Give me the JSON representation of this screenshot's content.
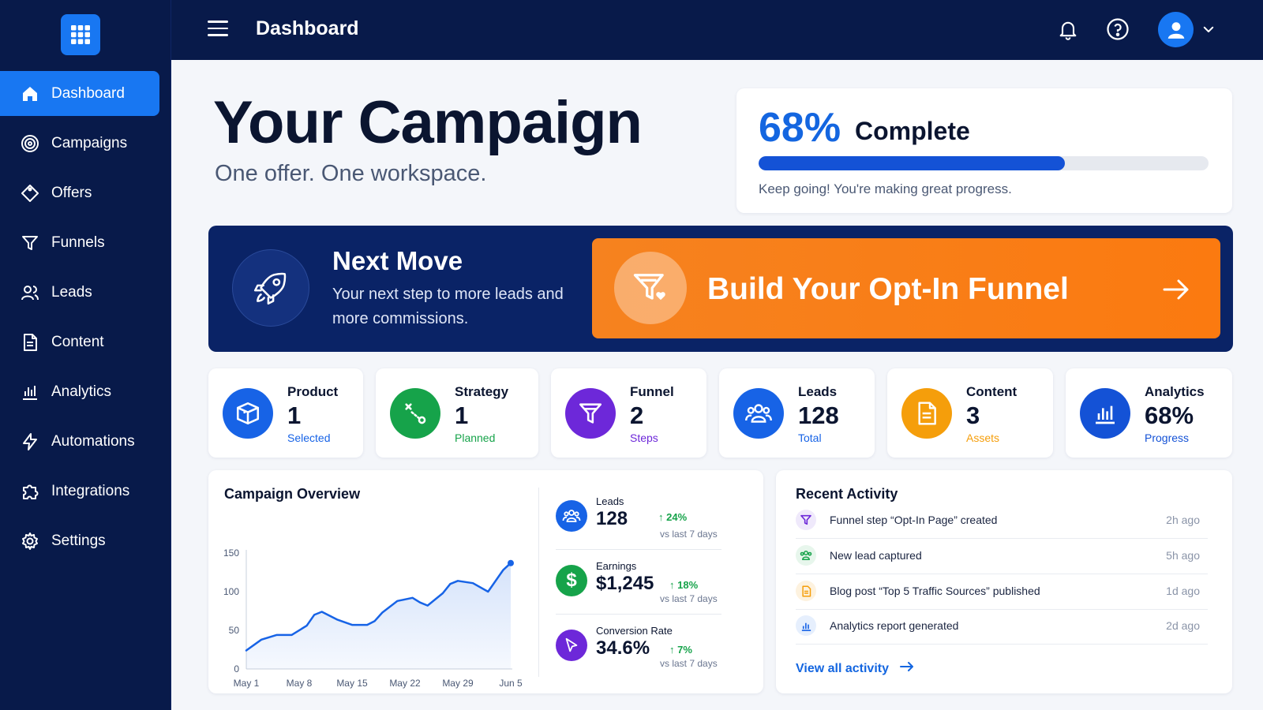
{
  "header": {
    "title": "Dashboard",
    "icons": [
      "menu-icon",
      "bell-icon",
      "help-icon",
      "user-icon",
      "chevron-down-icon"
    ]
  },
  "sidebar": {
    "items": [
      {
        "label": "Dashboard",
        "icon": "home-icon",
        "active": true
      },
      {
        "label": "Campaigns",
        "icon": "target-icon"
      },
      {
        "label": "Offers",
        "icon": "tag-icon"
      },
      {
        "label": "Funnels",
        "icon": "funnel-icon"
      },
      {
        "label": "Leads",
        "icon": "users-icon"
      },
      {
        "label": "Content",
        "icon": "document-icon"
      },
      {
        "label": "Analytics",
        "icon": "bar-chart-icon"
      },
      {
        "label": "Automations",
        "icon": "lightning-icon"
      },
      {
        "label": "Integrations",
        "icon": "puzzle-icon"
      },
      {
        "label": "Settings",
        "icon": "gear-icon"
      }
    ]
  },
  "hero": {
    "title": "Your Campaign",
    "subtitle": "One offer. One workspace."
  },
  "progress": {
    "percent_text": "68%",
    "label": "Complete",
    "value": 0.68,
    "note": "Keep going! You're making great progress."
  },
  "next_move": {
    "title": "Next Move",
    "text": "Your next step to more leads and more commissions.",
    "cta_label": "Build Your Opt-In Funnel"
  },
  "stats": [
    {
      "label": "Product",
      "value": "1",
      "sub": "Selected",
      "color": "#1763e6",
      "icon": "box-icon"
    },
    {
      "label": "Strategy",
      "value": "1",
      "sub": "Planned",
      "color": "#16a34a",
      "icon": "strategy-icon"
    },
    {
      "label": "Funnel",
      "value": "2",
      "sub": "Steps",
      "color": "#6d28d9",
      "icon": "funnel-icon"
    },
    {
      "label": "Leads",
      "value": "128",
      "sub": "Total",
      "color": "#1763e6",
      "icon": "users-icon"
    },
    {
      "label": "Content",
      "value": "3",
      "sub": "Assets",
      "color": "#f59e0b",
      "icon": "document-icon"
    },
    {
      "label": "Analytics",
      "value": "68%",
      "sub": "Progress",
      "color": "#1452d6",
      "icon": "bar-chart-icon"
    }
  ],
  "overview": {
    "title": "Campaign Overview",
    "metrics": [
      {
        "label": "Leads",
        "value": "128",
        "change": "24%",
        "vs": "vs last 7 days",
        "color": "#1763e6",
        "icon": "users-icon"
      },
      {
        "label": "Earnings",
        "value": "$1,245",
        "change": "18%",
        "vs": "vs last 7 days",
        "color": "#16a34a",
        "icon": "dollar-icon"
      },
      {
        "label": "Conversion Rate",
        "value": "34.6%",
        "change": "7%",
        "vs": "vs last 7 days",
        "color": "#6d28d9",
        "icon": "cursor-icon"
      }
    ]
  },
  "chart_data": {
    "type": "area",
    "x_tick_labels": [
      "May 1",
      "May 8",
      "May 15",
      "May 22",
      "May 29",
      "Jun 5"
    ],
    "y_ticks": [
      0,
      50,
      100,
      150
    ],
    "ylim": [
      0,
      150
    ],
    "xlim": [
      0,
      35
    ],
    "x": [
      0,
      2,
      4,
      5,
      6,
      8,
      9,
      10,
      12,
      14,
      16,
      17,
      18,
      20,
      22,
      23,
      24,
      26,
      27,
      28,
      30,
      32,
      34,
      35
    ],
    "y": [
      24,
      38,
      44,
      44,
      44,
      56,
      70,
      74,
      64,
      57,
      57,
      62,
      73,
      88,
      92,
      86,
      82,
      98,
      110,
      114,
      111,
      100,
      128,
      137
    ],
    "title": "",
    "xlabel": "",
    "ylabel": "",
    "grid": false,
    "color": "#1763e6"
  },
  "activity": {
    "title": "Recent Activity",
    "items": [
      {
        "text": "Funnel step “Opt-In Page” created",
        "time": "2h ago",
        "icon": "funnel-icon",
        "color": "#6d28d9",
        "bg": "#efe9fb"
      },
      {
        "text": "New lead captured",
        "time": "5h ago",
        "icon": "users-icon",
        "color": "#16a34a",
        "bg": "#e7f6ec"
      },
      {
        "text": "Blog post “Top 5 Traffic Sources” published",
        "time": "1d ago",
        "icon": "document-icon",
        "color": "#f59e0b",
        "bg": "#fdf2df"
      },
      {
        "text": "Analytics report generated",
        "time": "2d ago",
        "icon": "bar-chart-icon",
        "color": "#1763e6",
        "bg": "#e6effd"
      }
    ],
    "link": "View all activity"
  }
}
